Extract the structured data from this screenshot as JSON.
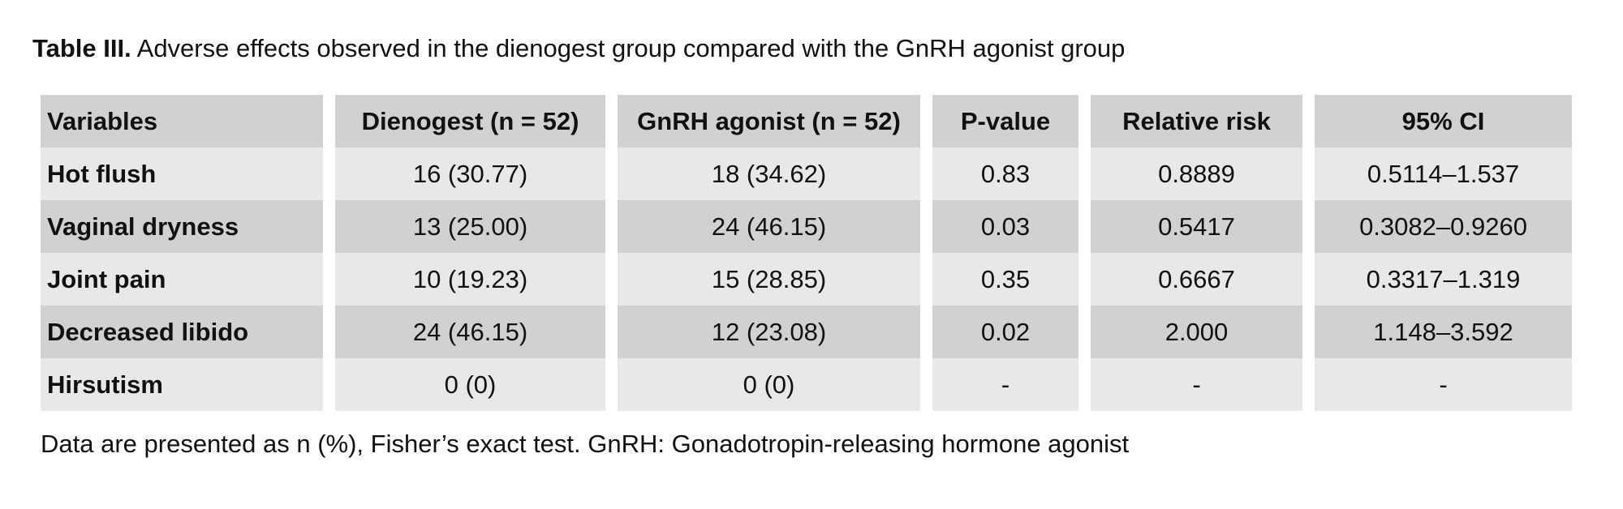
{
  "caption": {
    "label": "Table III.",
    "text": " Adverse effects observed in the dienogest group compared with the GnRH agonist group"
  },
  "table": {
    "headers": [
      "Variables",
      "Dienogest (n = 52)",
      "GnRH agonist (n = 52)",
      "P-value",
      "Relative risk",
      "95% CI"
    ],
    "rows": [
      [
        "Hot flush",
        "16 (30.77)",
        "18 (34.62)",
        "0.83",
        "0.8889",
        "0.5114–1.537"
      ],
      [
        "Vaginal dryness",
        "13 (25.00)",
        "24 (46.15)",
        "0.03",
        "0.5417",
        "0.3082–0.9260"
      ],
      [
        "Joint pain",
        "10 (19.23)",
        "15 (28.85)",
        "0.35",
        "0.6667",
        "0.3317–1.319"
      ],
      [
        "Decreased libido",
        "24 (46.15)",
        "12 (23.08)",
        "0.02",
        "2.000",
        "1.148–3.592"
      ],
      [
        "Hirsutism",
        "0 (0)",
        "0 (0)",
        "-",
        "-",
        "-"
      ]
    ]
  },
  "footnote": "Data are presented as n (%), Fisher’s exact test. GnRH: Gonadotropin-releasing hormone agonist",
  "colors": {
    "header_row_bg": "#d1d1d1",
    "row_light_bg": "#e8e8e8",
    "row_dark_bg": "#d1d1d1"
  }
}
